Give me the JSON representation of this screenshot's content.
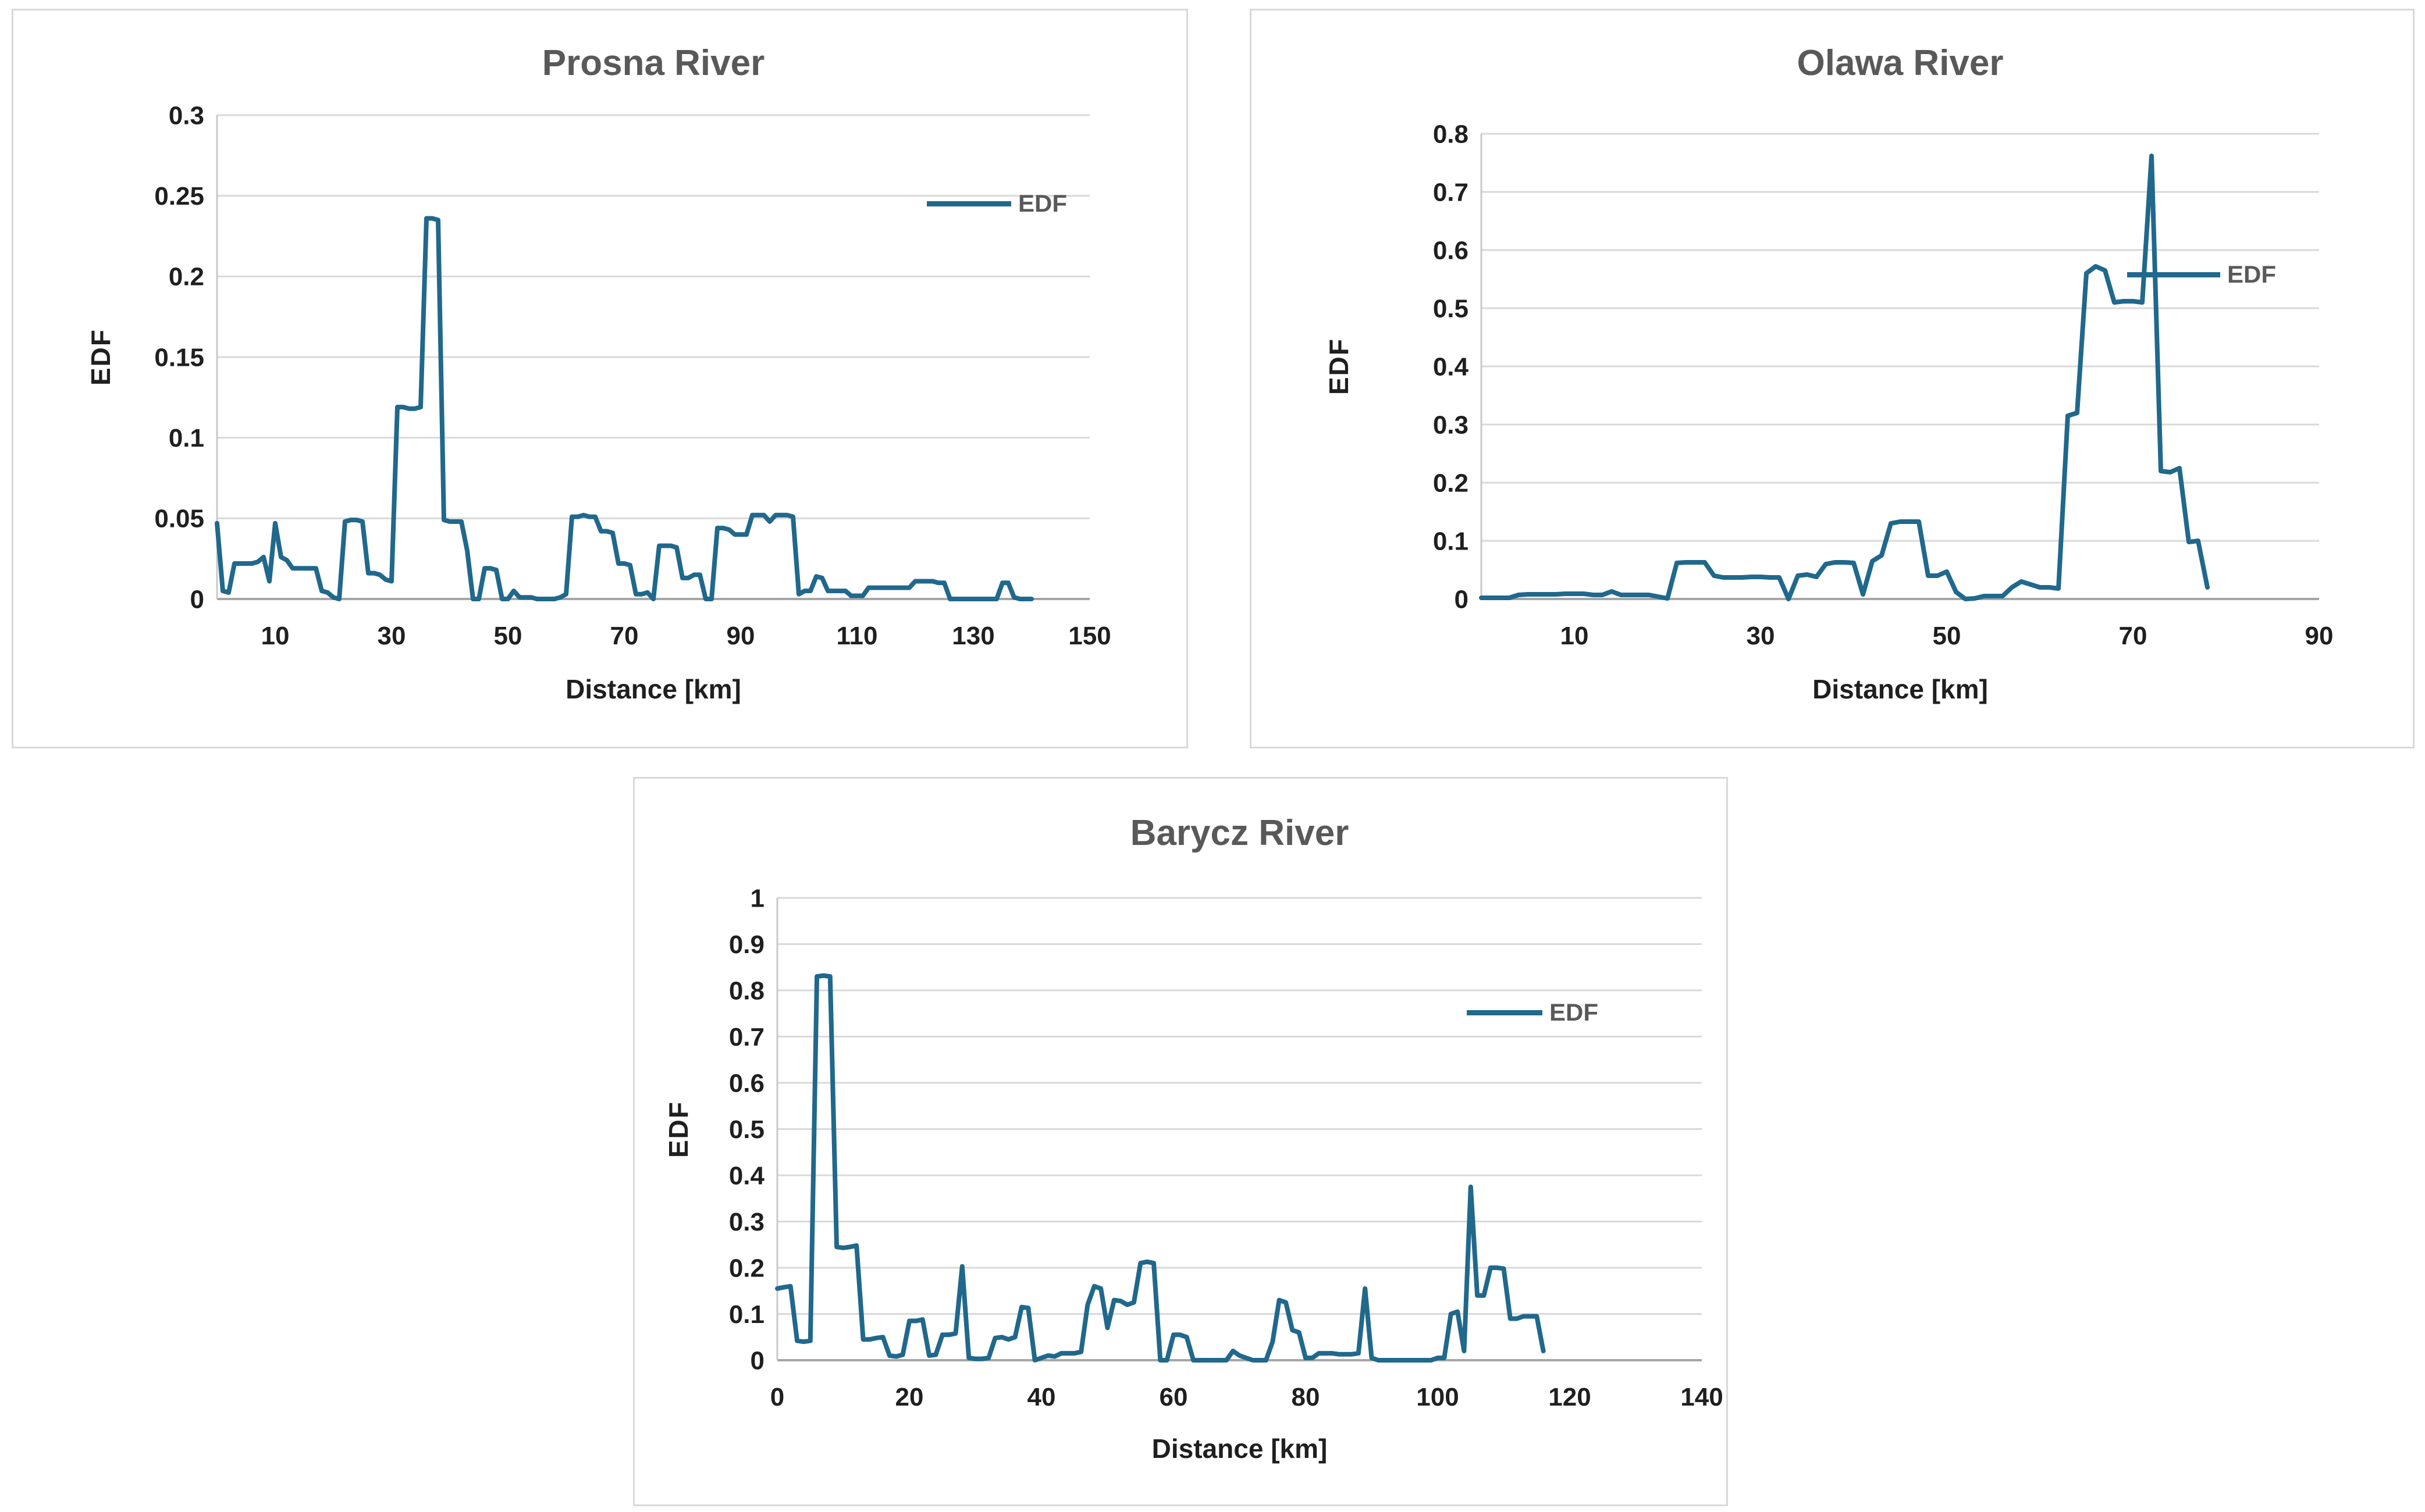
{
  "colors": {
    "line": "#20688C",
    "grid": "#D9D9D9",
    "zero_axis": "#A6A6A6",
    "left_axis": "#C9C9C9",
    "title": "#595959",
    "tick": "#1F1F1F",
    "legend_text": "#595959",
    "panel_border": "#D9D9D9"
  },
  "chart_data": [
    {
      "type": "line",
      "title": "Prosna River",
      "xlabel": "Distance [km]",
      "ylabel": "EDF",
      "legend": [
        "EDF"
      ],
      "legend_position": "right-inside",
      "xlim": [
        0,
        150
      ],
      "ylim": [
        0,
        0.3
      ],
      "x_ticks": [
        10,
        30,
        50,
        70,
        90,
        110,
        130,
        150
      ],
      "y_ticks": [
        0,
        0.05,
        0.1,
        0.15,
        0.2,
        0.25,
        0.3
      ],
      "grid": "horizontal",
      "series": [
        {
          "name": "EDF",
          "x_start": 0,
          "x_step": 1,
          "values": [
            0.047,
            0.005,
            0.004,
            0.022,
            0.022,
            0.022,
            0.022,
            0.023,
            0.026,
            0.011,
            0.047,
            0.026,
            0.024,
            0.019,
            0.019,
            0.019,
            0.019,
            0.019,
            0.005,
            0.004,
            0.001,
            0,
            0.048,
            0.049,
            0.049,
            0.048,
            0.016,
            0.016,
            0.015,
            0.012,
            0.011,
            0.119,
            0.119,
            0.118,
            0.118,
            0.119,
            0.236,
            0.236,
            0.235,
            0.049,
            0.048,
            0.048,
            0.048,
            0.03,
            0,
            0,
            0.019,
            0.019,
            0.018,
            0,
            0,
            0.005,
            0.001,
            0.001,
            0.001,
            0,
            0,
            0,
            0,
            0.001,
            0.003,
            0.051,
            0.051,
            0.052,
            0.051,
            0.051,
            0.042,
            0.042,
            0.041,
            0.022,
            0.022,
            0.021,
            0.003,
            0.003,
            0.004,
            0,
            0.033,
            0.033,
            0.033,
            0.032,
            0.013,
            0.013,
            0.015,
            0.015,
            0,
            0,
            0.044,
            0.044,
            0.043,
            0.04,
            0.04,
            0.04,
            0.052,
            0.052,
            0.052,
            0.048,
            0.052,
            0.052,
            0.052,
            0.051,
            0.003,
            0.005,
            0.005,
            0.014,
            0.013,
            0.005,
            0.005,
            0.005,
            0.005,
            0.002,
            0.002,
            0.002,
            0.007,
            0.007,
            0.007,
            0.007,
            0.007,
            0.007,
            0.007,
            0.007,
            0.011,
            0.011,
            0.011,
            0.011,
            0.01,
            0.01,
            0,
            0,
            0,
            0,
            0,
            0,
            0,
            0,
            0,
            0.01,
            0.01,
            0.001,
            0,
            0,
            0
          ]
        }
      ]
    },
    {
      "type": "line",
      "title": "Olawa River",
      "xlabel": "Distance [km]",
      "ylabel": "EDF",
      "legend": [
        "EDF"
      ],
      "legend_position": "right-inside",
      "xlim": [
        0,
        90
      ],
      "ylim": [
        0,
        0.8
      ],
      "x_ticks": [
        10,
        30,
        50,
        70,
        90
      ],
      "y_ticks": [
        0,
        0.1,
        0.2,
        0.3,
        0.4,
        0.5,
        0.6,
        0.7,
        0.8
      ],
      "grid": "horizontal",
      "series": [
        {
          "name": "EDF",
          "x_start": 0,
          "x_step": 1,
          "values": [
            0.002,
            0.002,
            0.002,
            0.002,
            0.007,
            0.008,
            0.008,
            0.008,
            0.008,
            0.009,
            0.009,
            0.009,
            0.007,
            0.007,
            0.013,
            0.007,
            0.007,
            0.007,
            0.007,
            0.004,
            0.001,
            0.062,
            0.063,
            0.063,
            0.063,
            0.04,
            0.037,
            0.037,
            0.037,
            0.038,
            0.038,
            0.037,
            0.037,
            0,
            0.04,
            0.042,
            0.038,
            0.06,
            0.063,
            0.063,
            0.062,
            0.008,
            0.065,
            0.075,
            0.13,
            0.133,
            0.133,
            0.133,
            0.04,
            0.04,
            0.047,
            0.012,
            0,
            0.001,
            0.005,
            0.005,
            0.005,
            0.02,
            0.03,
            0.025,
            0.02,
            0.02,
            0.018,
            0.315,
            0.32,
            0.56,
            0.572,
            0.565,
            0.51,
            0.512,
            0.512,
            0.51,
            0.762,
            0.22,
            0.218,
            0.225,
            0.098,
            0.1,
            0.02
          ]
        }
      ]
    },
    {
      "type": "line",
      "title": "Barycz River",
      "xlabel": "Distance [km]",
      "ylabel": "EDF",
      "legend": [
        "EDF"
      ],
      "legend_position": "top-right-inside",
      "xlim": [
        0,
        140
      ],
      "ylim": [
        0,
        1
      ],
      "x_ticks": [
        0,
        20,
        40,
        60,
        80,
        100,
        120,
        140
      ],
      "y_ticks": [
        0,
        0.1,
        0.2,
        0.3,
        0.4,
        0.5,
        0.6,
        0.7,
        0.8,
        0.9,
        1
      ],
      "grid": "horizontal",
      "series": [
        {
          "name": "EDF",
          "x_start": 0,
          "x_step": 1,
          "values": [
            0.155,
            0.158,
            0.16,
            0.042,
            0.04,
            0.042,
            0.83,
            0.832,
            0.83,
            0.245,
            0.243,
            0.245,
            0.248,
            0.045,
            0.045,
            0.048,
            0.05,
            0.01,
            0.008,
            0.012,
            0.085,
            0.085,
            0.088,
            0.01,
            0.012,
            0.055,
            0.055,
            0.058,
            0.203,
            0.005,
            0.003,
            0.003,
            0.005,
            0.048,
            0.05,
            0.045,
            0.05,
            0.115,
            0.113,
            0,
            0.005,
            0.01,
            0.008,
            0.015,
            0.015,
            0.015,
            0.018,
            0.12,
            0.16,
            0.155,
            0.07,
            0.13,
            0.128,
            0.12,
            0.125,
            0.21,
            0.213,
            0.21,
            0,
            0,
            0.055,
            0.055,
            0.05,
            0,
            0,
            0,
            0,
            0,
            0,
            0.02,
            0.01,
            0.005,
            0,
            0,
            0,
            0.04,
            0.13,
            0.125,
            0.065,
            0.06,
            0.005,
            0.005,
            0.015,
            0.015,
            0.015,
            0.013,
            0.013,
            0.013,
            0.015,
            0.155,
            0.005,
            0,
            0,
            0,
            0,
            0,
            0,
            0,
            0,
            0,
            0.005,
            0.005,
            0.1,
            0.105,
            0.02,
            0.375,
            0.14,
            0.14,
            0.2,
            0.2,
            0.198,
            0.09,
            0.09,
            0.095,
            0.095,
            0.095,
            0.02
          ]
        }
      ]
    }
  ]
}
